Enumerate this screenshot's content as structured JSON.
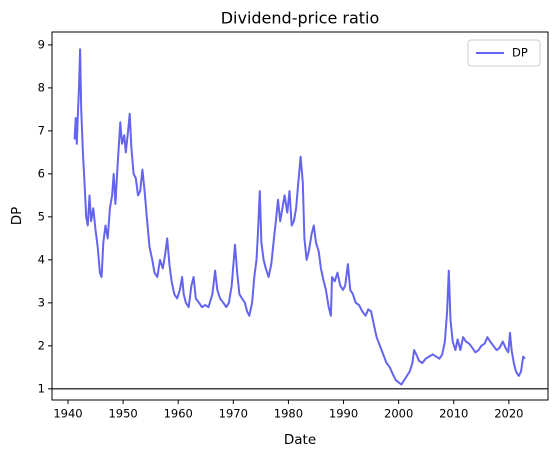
{
  "chart_data": {
    "type": "line",
    "title": "Dividend-price ratio",
    "x_label": "Date",
    "y_label": "DP",
    "x": [
      1941.2,
      1941.4,
      1941.6,
      1941.8,
      1942.0,
      1942.2,
      1942.4,
      1942.7,
      1943.0,
      1943.3,
      1943.6,
      1943.9,
      1944.2,
      1944.6,
      1945.0,
      1945.4,
      1945.8,
      1946.1,
      1946.4,
      1946.8,
      1947.2,
      1947.6,
      1948.0,
      1948.3,
      1948.6,
      1949.0,
      1949.5,
      1949.8,
      1950.2,
      1950.5,
      1950.9,
      1951.2,
      1951.5,
      1951.9,
      1952.3,
      1952.7,
      1953.1,
      1953.5,
      1953.9,
      1954.3,
      1954.8,
      1955.3,
      1955.7,
      1956.2,
      1956.7,
      1957.2,
      1957.6,
      1958.0,
      1958.4,
      1958.8,
      1959.3,
      1959.8,
      1960.3,
      1960.7,
      1961.0,
      1961.4,
      1961.9,
      1962.4,
      1962.8,
      1963.2,
      1963.8,
      1964.3,
      1964.9,
      1965.5,
      1966.2,
      1966.7,
      1967.1,
      1967.6,
      1968.2,
      1968.7,
      1969.2,
      1969.7,
      1970.3,
      1970.7,
      1971.1,
      1971.6,
      1972.1,
      1972.5,
      1972.9,
      1973.4,
      1973.8,
      1974.2,
      1974.5,
      1974.8,
      1975.1,
      1975.5,
      1975.9,
      1976.4,
      1976.9,
      1977.3,
      1977.8,
      1978.1,
      1978.5,
      1978.9,
      1979.3,
      1979.8,
      1980.2,
      1980.6,
      1981.0,
      1981.4,
      1981.8,
      1982.2,
      1982.6,
      1982.9,
      1983.3,
      1983.7,
      1984.2,
      1984.6,
      1985.0,
      1985.5,
      1985.9,
      1986.4,
      1986.8,
      1987.3,
      1987.7,
      1987.9,
      1988.4,
      1988.9,
      1989.4,
      1989.9,
      1990.3,
      1990.8,
      1991.2,
      1991.7,
      1992.2,
      1992.8,
      1993.4,
      1994.0,
      1994.5,
      1995.0,
      1995.5,
      1996.0,
      1996.6,
      1997.2,
      1997.8,
      1998.4,
      1998.9,
      1999.5,
      2000.0,
      2000.5,
      2001.0,
      2001.5,
      2002.0,
      2002.5,
      2002.8,
      2003.2,
      2003.7,
      2004.3,
      2004.9,
      2005.5,
      2006.2,
      2006.8,
      2007.4,
      2007.9,
      2008.4,
      2008.8,
      2009.1,
      2009.4,
      2009.8,
      2010.3,
      2010.7,
      2011.2,
      2011.7,
      2012.2,
      2012.8,
      2013.4,
      2013.9,
      2014.5,
      2015.0,
      2015.6,
      2016.1,
      2016.6,
      2017.2,
      2017.8,
      2018.3,
      2018.9,
      2019.4,
      2019.9,
      2020.2,
      2020.5,
      2020.9,
      2021.3,
      2021.8,
      2022.2,
      2022.6,
      2022.9
    ],
    "series": [
      {
        "name": "DP",
        "color": "#6464f0",
        "values": [
          6.8,
          7.3,
          6.7,
          7.4,
          8.0,
          8.9,
          7.5,
          6.5,
          5.8,
          5.0,
          4.8,
          5.5,
          4.9,
          5.2,
          4.7,
          4.3,
          3.7,
          3.6,
          4.4,
          4.8,
          4.5,
          5.2,
          5.5,
          6.0,
          5.3,
          6.2,
          7.2,
          6.7,
          6.9,
          6.5,
          7.0,
          7.4,
          6.6,
          6.0,
          5.9,
          5.5,
          5.6,
          6.1,
          5.6,
          5.0,
          4.3,
          4.0,
          3.7,
          3.6,
          4.0,
          3.8,
          4.1,
          4.5,
          3.9,
          3.5,
          3.2,
          3.1,
          3.3,
          3.6,
          3.2,
          3.0,
          2.9,
          3.4,
          3.6,
          3.1,
          3.0,
          2.9,
          2.95,
          2.9,
          3.2,
          3.75,
          3.3,
          3.1,
          3.0,
          2.9,
          3.0,
          3.4,
          4.35,
          3.7,
          3.2,
          3.1,
          3.0,
          2.8,
          2.7,
          3.0,
          3.6,
          4.0,
          4.7,
          5.6,
          4.4,
          4.0,
          3.8,
          3.6,
          3.9,
          4.4,
          5.0,
          5.4,
          4.9,
          5.2,
          5.5,
          5.1,
          5.6,
          4.8,
          4.9,
          5.2,
          5.8,
          6.4,
          5.8,
          4.5,
          4.0,
          4.2,
          4.6,
          4.8,
          4.4,
          4.2,
          3.8,
          3.5,
          3.3,
          2.9,
          2.7,
          3.6,
          3.5,
          3.7,
          3.4,
          3.3,
          3.4,
          3.9,
          3.3,
          3.2,
          3.0,
          2.95,
          2.8,
          2.7,
          2.85,
          2.8,
          2.5,
          2.2,
          2.0,
          1.8,
          1.6,
          1.5,
          1.35,
          1.2,
          1.15,
          1.1,
          1.2,
          1.3,
          1.4,
          1.6,
          1.9,
          1.8,
          1.65,
          1.6,
          1.7,
          1.75,
          1.8,
          1.75,
          1.7,
          1.8,
          2.1,
          2.8,
          3.75,
          2.6,
          2.1,
          1.9,
          2.15,
          1.9,
          2.2,
          2.1,
          2.05,
          1.95,
          1.85,
          1.9,
          2.0,
          2.05,
          2.2,
          2.1,
          2.0,
          1.9,
          1.95,
          2.1,
          1.95,
          1.85,
          2.3,
          1.9,
          1.6,
          1.4,
          1.3,
          1.4,
          1.75,
          1.7
        ]
      }
    ],
    "xlim": [
      1937.1,
      2027.1
    ],
    "xticks": [
      1940,
      1950,
      1960,
      1970,
      1980,
      1990,
      2000,
      2010,
      2020
    ],
    "ylim": [
      0.74,
      9.3
    ],
    "yticks": [
      1,
      2,
      3,
      4,
      5,
      6,
      7,
      8,
      9
    ],
    "reference_line": 1,
    "legend": "upper right"
  }
}
